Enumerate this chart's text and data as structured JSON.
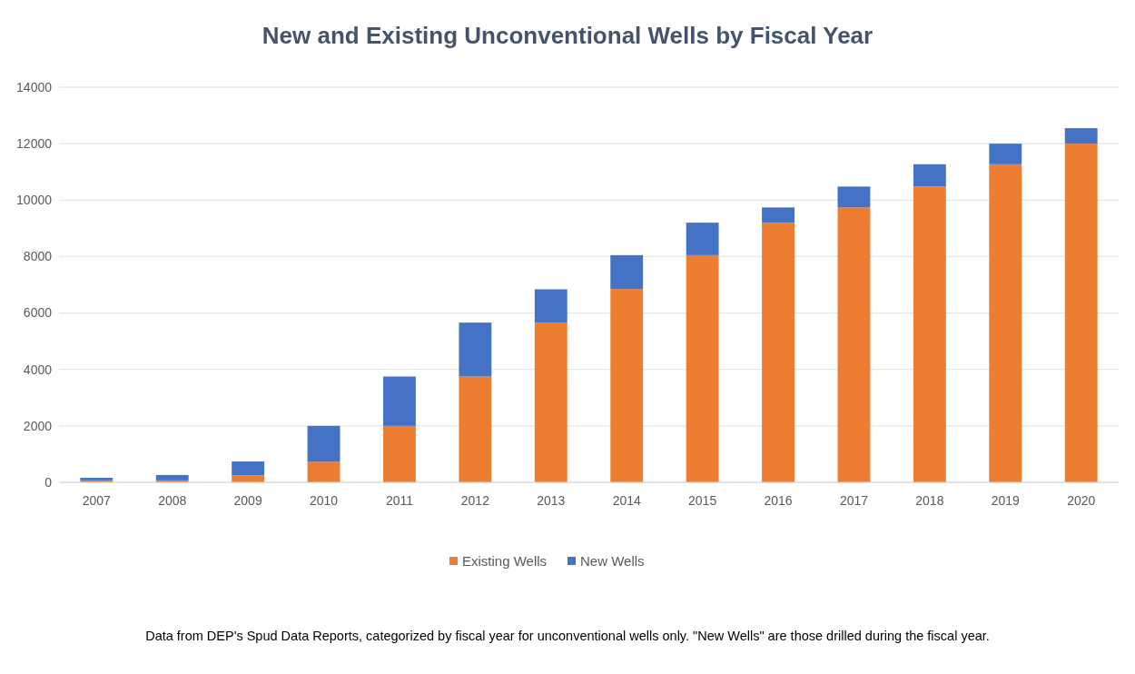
{
  "chart_data": {
    "type": "bar",
    "title": "New and Existing Unconventional Wells by Fiscal Year",
    "categories": [
      "2007",
      "2008",
      "2009",
      "2010",
      "2011",
      "2012",
      "2013",
      "2014",
      "2015",
      "2016",
      "2017",
      "2018",
      "2019",
      "2020"
    ],
    "series": [
      {
        "name": "Existing Wells",
        "color": "#ed7d31",
        "values": [
          70,
          70,
          250,
          730,
          2000,
          3750,
          5650,
          6850,
          8050,
          9200,
          9740,
          10480,
          11270,
          12000
        ]
      },
      {
        "name": "New Wells",
        "color": "#4472c4",
        "values": [
          90,
          190,
          490,
          1270,
          1750,
          1910,
          1190,
          1200,
          1150,
          540,
          740,
          790,
          730,
          550
        ]
      }
    ],
    "stacked": true,
    "ylim": [
      0,
      14000
    ],
    "yticks": [
      0,
      2000,
      4000,
      6000,
      8000,
      10000,
      12000,
      14000
    ],
    "grid": "y",
    "legend": "bottom",
    "annotations": [
      "Data from DEP's Spud Data Reports, categorized by fiscal year for unconventional wells only. \"New Wells\" are those drilled during the fiscal year."
    ]
  }
}
